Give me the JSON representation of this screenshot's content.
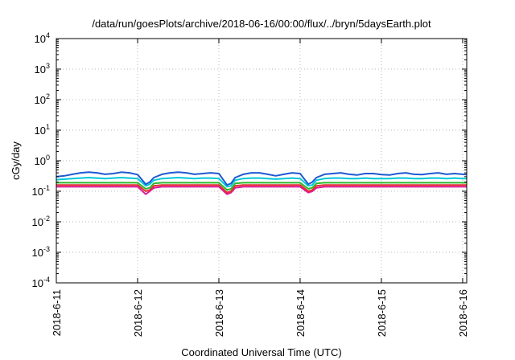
{
  "chart_data": {
    "type": "line",
    "title": "/data/run/goesPlots/archive/2018-06-16/00:00/flux/../bryn/5daysEarth.plot",
    "xlabel": "Coordinated Universal Time (UTC)",
    "ylabel": "cGy/day",
    "y_scale": "log",
    "ylim": [
      0.0001,
      10000
    ],
    "xlim": [
      0,
      5.05
    ],
    "grid": true,
    "legend": "none",
    "x_ticks": [
      {
        "pos": 0,
        "label": "2018-6-11"
      },
      {
        "pos": 1,
        "label": "2018-6-12"
      },
      {
        "pos": 2,
        "label": "2018-6-13"
      },
      {
        "pos": 3,
        "label": "2018-6-14"
      },
      {
        "pos": 4,
        "label": "2018-6-15"
      },
      {
        "pos": 5,
        "label": "2018-6-16"
      }
    ],
    "y_ticks": [
      {
        "value": 0.0001,
        "base": "10",
        "exp": "-4"
      },
      {
        "value": 0.001,
        "base": "10",
        "exp": "-3"
      },
      {
        "value": 0.01,
        "base": "10",
        "exp": "-2"
      },
      {
        "value": 0.1,
        "base": "10",
        "exp": "-1"
      },
      {
        "value": 1,
        "base": "10",
        "exp": "0"
      },
      {
        "value": 10,
        "base": "10",
        "exp": "1"
      },
      {
        "value": 100,
        "base": "10",
        "exp": "2"
      },
      {
        "value": 1000,
        "base": "10",
        "exp": "3"
      },
      {
        "value": 10000,
        "base": "10",
        "exp": "4"
      }
    ],
    "series": [
      {
        "color": "#e0189a",
        "x": [
          0,
          0.1,
          0.2,
          0.3,
          0.4,
          0.5,
          0.6,
          0.7,
          0.8,
          0.9,
          1.0,
          1.1,
          1.15,
          1.2,
          1.3,
          1.4,
          1.5,
          1.6,
          1.7,
          1.8,
          1.9,
          2.0,
          2.1,
          2.15,
          2.2,
          2.3,
          2.4,
          2.5,
          2.6,
          2.7,
          2.8,
          2.9,
          3.0,
          3.1,
          3.15,
          3.2,
          3.3,
          3.4,
          3.5,
          3.6,
          3.7,
          3.8,
          3.9,
          4.0,
          4.1,
          4.2,
          4.3,
          4.4,
          4.5,
          4.6,
          4.7,
          4.8,
          4.9,
          5.0,
          5.05
        ],
        "values": [
          0.14,
          0.14,
          0.14,
          0.14,
          0.14,
          0.14,
          0.14,
          0.14,
          0.14,
          0.14,
          0.14,
          0.08,
          0.1,
          0.13,
          0.14,
          0.14,
          0.14,
          0.14,
          0.14,
          0.14,
          0.14,
          0.14,
          0.08,
          0.09,
          0.13,
          0.14,
          0.14,
          0.14,
          0.14,
          0.14,
          0.14,
          0.14,
          0.14,
          0.09,
          0.1,
          0.13,
          0.14,
          0.14,
          0.14,
          0.14,
          0.14,
          0.14,
          0.14,
          0.14,
          0.14,
          0.14,
          0.14,
          0.14,
          0.14,
          0.14,
          0.14,
          0.14,
          0.14,
          0.14,
          0.14
        ]
      },
      {
        "color": "#e03030",
        "x": [
          0,
          0.1,
          0.2,
          0.3,
          0.4,
          0.5,
          0.6,
          0.7,
          0.8,
          0.9,
          1.0,
          1.1,
          1.15,
          1.2,
          1.3,
          1.4,
          1.5,
          1.6,
          1.7,
          1.8,
          1.9,
          2.0,
          2.1,
          2.15,
          2.2,
          2.3,
          2.4,
          2.5,
          2.6,
          2.7,
          2.8,
          2.9,
          3.0,
          3.1,
          3.15,
          3.2,
          3.3,
          3.4,
          3.5,
          3.6,
          3.7,
          3.8,
          3.9,
          4.0,
          4.1,
          4.2,
          4.3,
          4.4,
          4.5,
          4.6,
          4.7,
          4.8,
          4.9,
          5.0,
          5.05
        ],
        "values": [
          0.16,
          0.16,
          0.16,
          0.16,
          0.16,
          0.16,
          0.16,
          0.16,
          0.16,
          0.16,
          0.16,
          0.1,
          0.11,
          0.15,
          0.16,
          0.16,
          0.16,
          0.16,
          0.16,
          0.16,
          0.16,
          0.16,
          0.09,
          0.1,
          0.15,
          0.16,
          0.16,
          0.16,
          0.16,
          0.16,
          0.16,
          0.16,
          0.16,
          0.1,
          0.11,
          0.15,
          0.16,
          0.16,
          0.16,
          0.16,
          0.16,
          0.16,
          0.16,
          0.16,
          0.16,
          0.16,
          0.16,
          0.16,
          0.16,
          0.16,
          0.16,
          0.16,
          0.16,
          0.16,
          0.16
        ]
      },
      {
        "color": "#2eb82e",
        "x": [
          0,
          0.1,
          0.2,
          0.3,
          0.4,
          0.5,
          0.6,
          0.7,
          0.8,
          0.9,
          1.0,
          1.1,
          1.15,
          1.2,
          1.3,
          1.4,
          1.5,
          1.6,
          1.7,
          1.8,
          1.9,
          2.0,
          2.1,
          2.15,
          2.2,
          2.3,
          2.4,
          2.5,
          2.6,
          2.7,
          2.8,
          2.9,
          3.0,
          3.1,
          3.15,
          3.2,
          3.3,
          3.4,
          3.5,
          3.6,
          3.7,
          3.8,
          3.9,
          4.0,
          4.1,
          4.2,
          4.3,
          4.4,
          4.5,
          4.6,
          4.7,
          4.8,
          4.9,
          5.0,
          5.05
        ],
        "values": [
          0.19,
          0.19,
          0.19,
          0.19,
          0.19,
          0.19,
          0.19,
          0.19,
          0.19,
          0.19,
          0.19,
          0.12,
          0.13,
          0.18,
          0.19,
          0.19,
          0.19,
          0.19,
          0.19,
          0.19,
          0.19,
          0.19,
          0.11,
          0.12,
          0.18,
          0.19,
          0.19,
          0.19,
          0.19,
          0.19,
          0.19,
          0.19,
          0.19,
          0.12,
          0.13,
          0.18,
          0.19,
          0.19,
          0.19,
          0.19,
          0.19,
          0.19,
          0.19,
          0.19,
          0.19,
          0.19,
          0.19,
          0.19,
          0.19,
          0.19,
          0.19,
          0.19,
          0.19,
          0.19,
          0.19
        ]
      },
      {
        "color": "#00c8d8",
        "x": [
          0,
          0.1,
          0.2,
          0.3,
          0.4,
          0.5,
          0.6,
          0.7,
          0.8,
          0.9,
          1.0,
          1.1,
          1.15,
          1.2,
          1.3,
          1.4,
          1.5,
          1.6,
          1.7,
          1.8,
          1.9,
          2.0,
          2.1,
          2.15,
          2.2,
          2.3,
          2.4,
          2.5,
          2.6,
          2.7,
          2.8,
          2.9,
          3.0,
          3.1,
          3.15,
          3.2,
          3.3,
          3.4,
          3.5,
          3.6,
          3.7,
          3.8,
          3.9,
          4.0,
          4.1,
          4.2,
          4.3,
          4.4,
          4.5,
          4.6,
          4.7,
          4.8,
          4.9,
          5.0,
          5.05
        ],
        "values": [
          0.24,
          0.25,
          0.26,
          0.27,
          0.28,
          0.27,
          0.26,
          0.27,
          0.28,
          0.27,
          0.26,
          0.15,
          0.17,
          0.23,
          0.26,
          0.27,
          0.28,
          0.27,
          0.26,
          0.27,
          0.27,
          0.26,
          0.14,
          0.15,
          0.23,
          0.26,
          0.27,
          0.27,
          0.26,
          0.25,
          0.26,
          0.27,
          0.26,
          0.15,
          0.16,
          0.23,
          0.26,
          0.27,
          0.27,
          0.26,
          0.26,
          0.27,
          0.26,
          0.26,
          0.26,
          0.27,
          0.27,
          0.26,
          0.26,
          0.27,
          0.27,
          0.26,
          0.27,
          0.26,
          0.26
        ]
      },
      {
        "color": "#1e5ad2",
        "x": [
          0,
          0.1,
          0.2,
          0.3,
          0.4,
          0.5,
          0.6,
          0.7,
          0.8,
          0.9,
          1.0,
          1.1,
          1.15,
          1.2,
          1.3,
          1.4,
          1.5,
          1.6,
          1.7,
          1.8,
          1.9,
          2.0,
          2.1,
          2.15,
          2.2,
          2.3,
          2.4,
          2.5,
          2.6,
          2.7,
          2.8,
          2.9,
          3.0,
          3.1,
          3.15,
          3.2,
          3.3,
          3.4,
          3.5,
          3.6,
          3.7,
          3.8,
          3.9,
          4.0,
          4.1,
          4.2,
          4.3,
          4.4,
          4.5,
          4.6,
          4.7,
          4.8,
          4.9,
          5.0,
          5.05
        ],
        "values": [
          0.3,
          0.32,
          0.36,
          0.4,
          0.42,
          0.4,
          0.36,
          0.38,
          0.42,
          0.4,
          0.35,
          0.17,
          0.2,
          0.28,
          0.36,
          0.4,
          0.42,
          0.4,
          0.36,
          0.38,
          0.4,
          0.38,
          0.16,
          0.18,
          0.28,
          0.36,
          0.4,
          0.4,
          0.36,
          0.32,
          0.36,
          0.4,
          0.38,
          0.17,
          0.2,
          0.28,
          0.36,
          0.38,
          0.4,
          0.36,
          0.34,
          0.38,
          0.38,
          0.35,
          0.34,
          0.38,
          0.4,
          0.36,
          0.35,
          0.38,
          0.4,
          0.36,
          0.38,
          0.36,
          0.35
        ]
      }
    ]
  }
}
